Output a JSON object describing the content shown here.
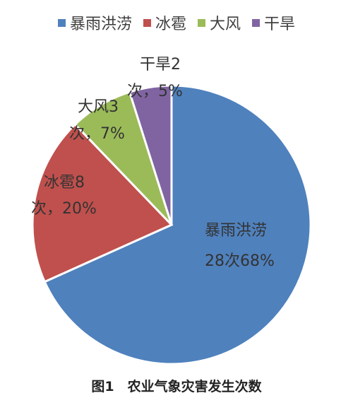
{
  "chart_data": {
    "type": "pie",
    "categories": [
      "暴雨洪涝",
      "冰雹",
      "大风",
      "干旱"
    ],
    "values": [
      28,
      8,
      3,
      2
    ],
    "percents": [
      68,
      20,
      7,
      5
    ],
    "colors": [
      "#4F81BD",
      "#C0504D",
      "#9BBB59",
      "#8064A2"
    ],
    "data_labels": [
      [
        "暴雨洪涝",
        "28次68%"
      ],
      [
        "冰雹8",
        "次，20%"
      ],
      [
        "大风3",
        "次，7%"
      ],
      [
        "干旱2",
        "次，5%"
      ]
    ],
    "legend_position": "top",
    "caption": "图1　农业气象灾害发生次数"
  }
}
